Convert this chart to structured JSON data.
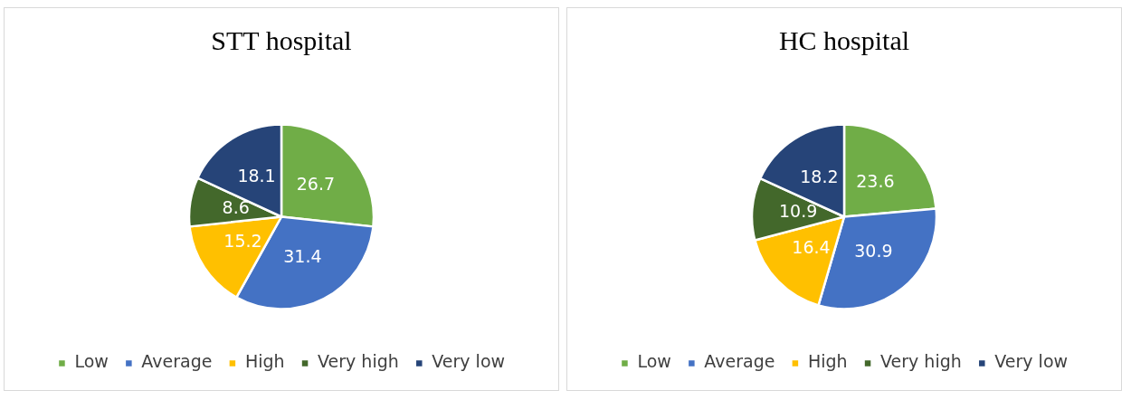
{
  "chart_data": [
    {
      "type": "pie",
      "title": "STT hospital",
      "categories": [
        "Low",
        "Average",
        "High",
        "Very high",
        "Very low"
      ],
      "values": [
        26.7,
        31.4,
        15.2,
        8.6,
        18.1
      ],
      "colors": [
        "#70ad47",
        "#4472c4",
        "#ffc000",
        "#43682b",
        "#264478"
      ],
      "legend": "bottom",
      "data_labels": true
    },
    {
      "type": "pie",
      "title": "HC hospital",
      "categories": [
        "Low",
        "Average",
        "High",
        "Very high",
        "Very low"
      ],
      "values": [
        23.6,
        30.9,
        16.4,
        10.9,
        18.2
      ],
      "colors": [
        "#70ad47",
        "#4472c4",
        "#ffc000",
        "#43682b",
        "#264478"
      ],
      "legend": "bottom",
      "data_labels": true
    }
  ]
}
